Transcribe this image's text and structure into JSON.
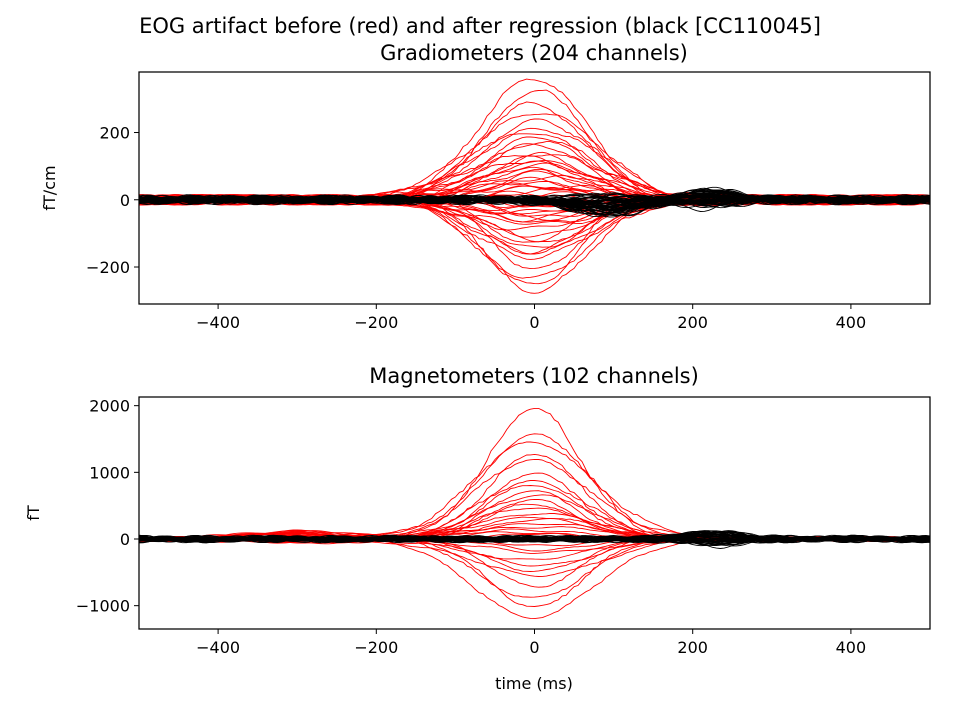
{
  "figure": {
    "suptitle": "EOG artifact before (red) and after regression (black [CC110045]"
  },
  "chart_data": [
    {
      "type": "line",
      "title": "Gradiometers (204 channels)",
      "xlabel": "",
      "ylabel": "fT/cm",
      "xlim": [
        -500,
        500
      ],
      "ylim": [
        -310,
        380
      ],
      "xticks": [
        -400,
        -200,
        0,
        200,
        400
      ],
      "xtick_labels": [
        "−400",
        "−200",
        "0",
        "200",
        "400"
      ],
      "yticks": [
        -200,
        0,
        200
      ],
      "ytick_labels": [
        "−200",
        "0",
        "200"
      ],
      "grid": false,
      "colors": {
        "before": "#ff0000",
        "after": "#000000"
      },
      "series_groups": [
        {
          "group": "before",
          "x": [
            -500,
            -450,
            -400,
            -350,
            -300,
            -250,
            -200,
            -150,
            -100,
            -75,
            -50,
            -25,
            0,
            25,
            50,
            75,
            100,
            150,
            200,
            250,
            300,
            350,
            400,
            450,
            500
          ],
          "peak_amplitudes": [
            352,
            330,
            295,
            265,
            240,
            215,
            195,
            180,
            168,
            155,
            145,
            135,
            125,
            118,
            110,
            100,
            92,
            85,
            75,
            68,
            60,
            52,
            45,
            38,
            30,
            24,
            18,
            12,
            -10,
            -18,
            -25,
            -32,
            -40,
            -48,
            -55,
            -62,
            -70,
            -78,
            -88,
            -98,
            -110,
            -122,
            -135,
            -150,
            -165,
            -180,
            -200,
            -225,
            -250,
            -282
          ],
          "peak_center_ms": 0,
          "baseline_wobble": 12
        },
        {
          "group": "after",
          "x": [
            -500,
            -450,
            -400,
            -350,
            -300,
            -250,
            -200,
            -150,
            -100,
            -75,
            -50,
            -25,
            0,
            25,
            50,
            75,
            100,
            150,
            200,
            250,
            300,
            350,
            400,
            450,
            500
          ],
          "bump_center_ms": 220,
          "bump_amplitude": 25,
          "dip_center_ms": 90,
          "dip_amplitude": 45,
          "baseline_wobble": 10,
          "count": 60
        }
      ]
    },
    {
      "type": "line",
      "title": "Magnetometers (102 channels)",
      "xlabel": "time (ms)",
      "ylabel": "fT",
      "xlim": [
        -500,
        500
      ],
      "ylim": [
        -1350,
        2130
      ],
      "xticks": [
        -400,
        -200,
        0,
        200,
        400
      ],
      "xtick_labels": [
        "−400",
        "−200",
        "0",
        "200",
        "400"
      ],
      "yticks": [
        -1000,
        0,
        1000,
        2000
      ],
      "ytick_labels": [
        "−1000",
        "0",
        "1000",
        "2000"
      ],
      "grid": false,
      "colors": {
        "before": "#ff0000",
        "after": "#000000"
      },
      "series_groups": [
        {
          "group": "before",
          "x": [
            -500,
            -450,
            -400,
            -350,
            -300,
            -250,
            -200,
            -150,
            -100,
            -75,
            -50,
            -25,
            0,
            25,
            50,
            75,
            100,
            150,
            200,
            250,
            300,
            350,
            400,
            450,
            500
          ],
          "peak_amplitudes": [
            1980,
            1560,
            1450,
            1300,
            1180,
            1020,
            880,
            800,
            720,
            640,
            580,
            520,
            460,
            400,
            350,
            300,
            250,
            200,
            150,
            100,
            60,
            -80,
            -150,
            -220,
            -300,
            -380,
            -460,
            -560,
            -700,
            -880,
            -1000,
            -1200
          ],
          "peak_center_ms": 0,
          "early_bump_center_ms": -290,
          "early_bump_amplitude": 150,
          "baseline_wobble": 30
        },
        {
          "group": "after",
          "x": [
            -500,
            -450,
            -400,
            -350,
            -300,
            -250,
            -200,
            -150,
            -100,
            -75,
            -50,
            -25,
            0,
            25,
            50,
            75,
            100,
            150,
            200,
            250,
            300,
            350,
            400,
            450,
            500
          ],
          "bump_center_ms": 225,
          "bump_amplitude": 120,
          "baseline_wobble": 40,
          "count": 50
        }
      ]
    }
  ]
}
